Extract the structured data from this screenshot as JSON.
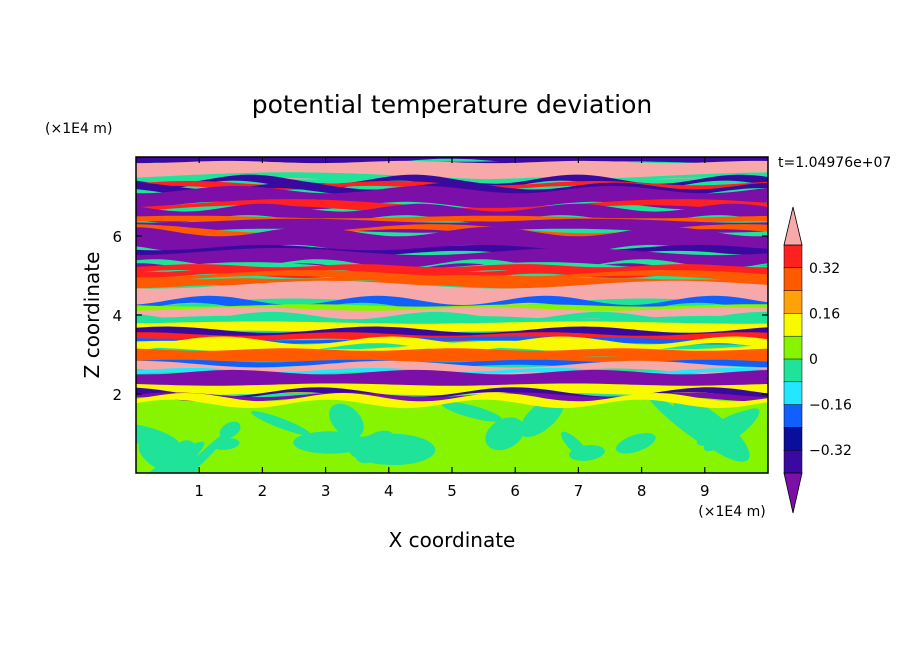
{
  "chart_data": {
    "type": "heatmap",
    "title": "potential temperature deviation",
    "xlabel": "X coordinate",
    "ylabel": "Z coordinate",
    "x_unit": "(×1E4 m)",
    "y_unit": "(×1E4 m)",
    "time_label": "t=1.04976e+07",
    "xlim": [
      0,
      10
    ],
    "ylim": [
      0,
      8
    ],
    "x_ticks": [
      "1",
      "2",
      "3",
      "4",
      "5",
      "6",
      "7",
      "8",
      "9"
    ],
    "y_ticks": [
      "2",
      "4",
      "6"
    ],
    "grid": false,
    "legend_position": "right",
    "colorbar": {
      "tick_labels": [
        "0.32",
        "0.16",
        "0",
        "−0.16",
        "−0.32"
      ],
      "levels": [
        -0.4,
        -0.32,
        -0.24,
        -0.16,
        -0.08,
        0,
        0.08,
        0.16,
        0.24,
        0.32,
        0.4
      ],
      "colors": [
        "#7b0fa8",
        "#3a0aa0",
        "#0a0e9a",
        "#1060ff",
        "#22e7ff",
        "#20e39a",
        "#88f500",
        "#f9f900",
        "#ffa20a",
        "#ff5a00",
        "#ff2020",
        "#f7a8a8"
      ],
      "extend": "both"
    },
    "regions": {
      "lower_layer": {
        "z_range": [
          0,
          1.9
        ],
        "values": [
          0,
          0.04
        ]
      },
      "stratified_layer": {
        "z_range": [
          1.9,
          8
        ],
        "values": [
          -0.4,
          0.4
        ]
      }
    }
  }
}
